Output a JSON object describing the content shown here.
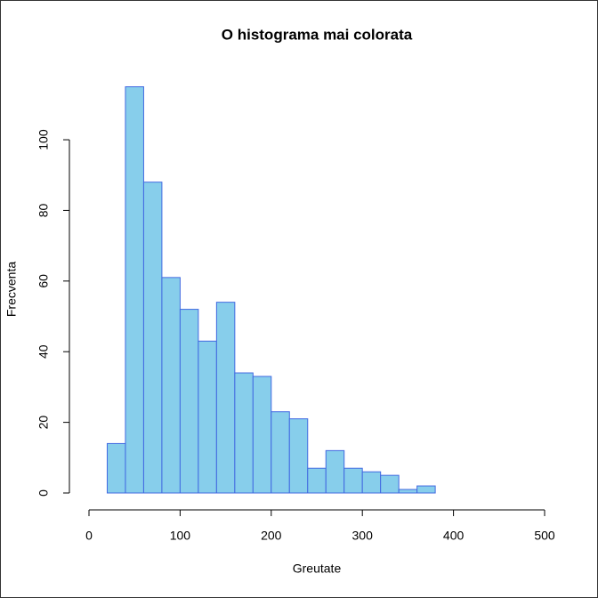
{
  "chart_data": {
    "type": "histogram",
    "title": "O histograma mai colorata",
    "x_label": "Greutate",
    "y_label": "Frecventa",
    "bins": [
      20,
      40,
      60,
      80,
      100,
      120,
      140,
      160,
      180,
      200,
      220,
      240,
      260,
      280,
      300,
      320,
      340,
      360,
      380
    ],
    "counts": [
      14,
      115,
      88,
      61,
      52,
      43,
      54,
      34,
      33,
      23,
      21,
      7,
      12,
      7,
      6,
      5,
      1,
      2
    ],
    "color": "#87ceeb",
    "edge_color": "#4169e1",
    "xlim": [
      0,
      500
    ],
    "xticks": [
      0,
      100,
      200,
      300,
      400,
      500
    ],
    "ylim": [
      0,
      115
    ],
    "yticks": [
      0,
      20,
      40,
      60,
      80,
      100
    ]
  }
}
